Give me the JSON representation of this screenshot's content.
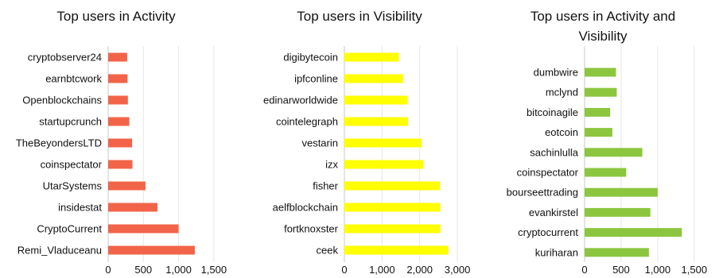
{
  "chart_data": [
    {
      "type": "bar",
      "orientation": "horizontal",
      "title_lines": [
        "Top users in Activity"
      ],
      "categories": [
        "cryptobserver24",
        "earnbtcwork",
        "Openblockchains",
        "startupcrunch",
        "TheBeyondersLTD",
        "coinspectator",
        "UtarSystems",
        "insidestat",
        "CryptoCurrent",
        "Remi_Vladuceanu"
      ],
      "values": [
        270,
        275,
        280,
        300,
        340,
        345,
        530,
        700,
        1000,
        1230
      ],
      "xlim": [
        0,
        1750
      ],
      "x_ticks": [
        0,
        500,
        1000,
        1500
      ],
      "x_tick_labels": [
        "0",
        "500",
        "1,000",
        "1,500"
      ],
      "color": "#f26449",
      "grid": true
    },
    {
      "type": "bar",
      "orientation": "horizontal",
      "title_lines": [
        "Top users in Visibility"
      ],
      "categories": [
        "digibytecoin",
        "ipfconline",
        "edinarworldwide",
        "cointelegraph",
        "vestarin",
        "izx",
        "fisher",
        "aelfblockchain",
        "fortknoxster",
        "ceek"
      ],
      "values": [
        1450,
        1560,
        1680,
        1690,
        2050,
        2100,
        2540,
        2550,
        2550,
        2760
      ],
      "xlim": [
        0,
        3400
      ],
      "x_ticks": [
        0,
        1000,
        2000,
        3000
      ],
      "x_tick_labels": [
        "0",
        "1,000",
        "2,000",
        "3,000"
      ],
      "color": "#ffff00",
      "grid": true
    },
    {
      "type": "bar",
      "orientation": "horizontal",
      "title_lines": [
        "Top users in Activity and",
        "Visibility"
      ],
      "categories": [
        "dumbwire",
        "mclynd",
        "bitcoinagile",
        "eotcoin",
        "sachinlulla",
        "coinspectator",
        "bourseettrading",
        "evankirstel",
        "cryptocurrent",
        "kuriharan"
      ],
      "values": [
        430,
        440,
        350,
        380,
        790,
        570,
        1000,
        900,
        1330,
        880
      ],
      "xlim": [
        0,
        1600
      ],
      "x_ticks": [
        0,
        500,
        1000,
        1500
      ],
      "x_tick_labels": [
        "0",
        "500",
        "1,000",
        "1,500"
      ],
      "color": "#8cc63f",
      "grid": true
    }
  ]
}
